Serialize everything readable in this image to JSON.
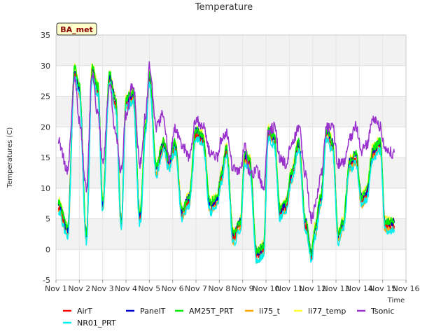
{
  "chart_data": {
    "type": "line",
    "title": "Temperature",
    "badge": "BA_met",
    "xlabel": "Time",
    "ylabel": "Temperatures (C)",
    "xlim": [
      1,
      16
    ],
    "ylim": [
      -5,
      35
    ],
    "x_ticks": [
      1,
      2,
      3,
      4,
      5,
      6,
      7,
      8,
      9,
      10,
      11,
      12,
      13,
      14,
      15,
      16
    ],
    "x_tick_labels": [
      "Nov 1",
      "Nov 2",
      "Nov 3",
      "Nov 4",
      "Nov 5",
      "Nov 6",
      "Nov 7",
      "Nov 8",
      "Nov 9",
      "Nov 10",
      "Nov 11",
      "Nov 12",
      "Nov 13",
      "Nov 14",
      "Nov 15",
      "Nov 16"
    ],
    "y_ticks": [
      -5,
      0,
      5,
      10,
      15,
      20,
      25,
      30,
      35
    ],
    "y_tick_labels": [
      "-5",
      "0",
      "5",
      "10",
      "15",
      "20",
      "25",
      "30",
      "35"
    ],
    "legend_position": "bottom",
    "background_bands": true,
    "series": [
      {
        "name": "AirT",
        "color": "#ff0000"
      },
      {
        "name": "PanelT",
        "color": "#0000cc"
      },
      {
        "name": "AM25T_PRT",
        "color": "#00ee00"
      },
      {
        "name": "li75_t",
        "color": "#ffa500"
      },
      {
        "name": "li77_temp",
        "color": "#ffff33"
      },
      {
        "name": "Tsonic",
        "color": "#9932cc"
      },
      {
        "name": "NR01_PRT",
        "color": "#00eeee"
      }
    ],
    "x": [
      1.1,
      1.5,
      1.8,
      2.0,
      2.3,
      2.55,
      2.8,
      3.0,
      3.3,
      3.55,
      3.8,
      4.0,
      4.3,
      4.6,
      4.85,
      5.0,
      5.3,
      5.6,
      5.85,
      6.1,
      6.4,
      6.7,
      7.0,
      7.3,
      7.6,
      7.9,
      8.1,
      8.3,
      8.6,
      8.9,
      9.1,
      9.3,
      9.6,
      9.9,
      10.1,
      10.35,
      10.6,
      10.85,
      11.1,
      11.4,
      11.7,
      11.95,
      12.1,
      12.35,
      12.6,
      12.85,
      13.1,
      13.3,
      13.6,
      13.85,
      14.1,
      14.3,
      14.6,
      14.9,
      15.1,
      15.3,
      15.5
    ],
    "base": [
      7,
      3,
      29,
      26,
      2,
      29,
      26,
      7,
      28,
      24,
      4,
      24,
      25,
      5,
      20,
      28,
      13,
      17,
      14,
      17,
      6,
      8,
      19,
      18,
      7,
      8,
      12,
      16,
      2,
      4,
      15,
      14,
      -1,
      0,
      19,
      18,
      6,
      7,
      12,
      17,
      4,
      -1,
      3,
      8,
      19,
      17,
      2,
      4,
      14,
      15,
      8,
      9,
      16,
      17,
      4,
      4,
      4
    ],
    "tsonic": [
      17.5,
      13,
      28,
      21,
      10,
      29,
      22,
      14,
      27,
      19,
      13,
      22,
      27,
      14,
      22,
      30,
      20,
      22,
      15,
      20,
      17,
      15,
      21,
      20,
      16,
      15,
      18,
      19,
      13,
      13,
      17,
      12,
      13,
      10,
      19,
      20,
      15,
      14,
      17,
      20,
      12,
      5,
      7,
      12,
      20,
      20,
      14,
      14,
      18,
      20,
      16,
      17,
      21,
      20,
      16,
      16,
      15.5
    ]
  }
}
